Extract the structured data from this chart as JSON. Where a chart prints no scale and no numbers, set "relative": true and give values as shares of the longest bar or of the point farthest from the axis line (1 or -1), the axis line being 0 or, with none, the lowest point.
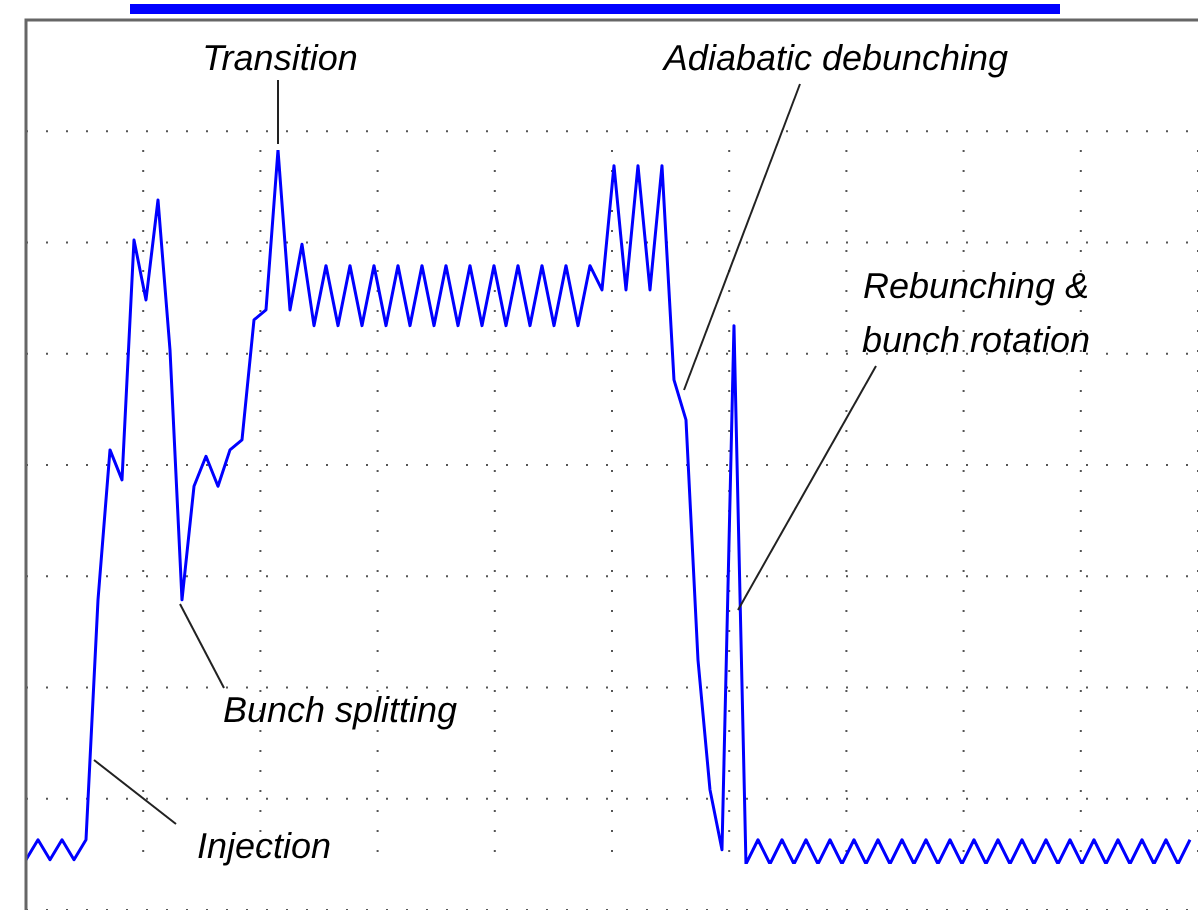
{
  "chart_data": {
    "type": "line",
    "relative": true,
    "grid": true,
    "marker": "none",
    "line_style": "solid",
    "categories": [
      null,
      null,
      null,
      null,
      null,
      null,
      null,
      null,
      null,
      null,
      null,
      null,
      null,
      null,
      null,
      null,
      null,
      null,
      null,
      null,
      null,
      null,
      null,
      null,
      null,
      null,
      null,
      null,
      null,
      null,
      null,
      null,
      null,
      null,
      null,
      null,
      null,
      null,
      null,
      null,
      null,
      null,
      null,
      null,
      null,
      null,
      null,
      null,
      null,
      null,
      null,
      null,
      null,
      null,
      null,
      null,
      null,
      null,
      null,
      null,
      null,
      null,
      null,
      null,
      null,
      null,
      null,
      null,
      null,
      null,
      null,
      null,
      null,
      null,
      null,
      null,
      null,
      null,
      null,
      null,
      null,
      null,
      null,
      null,
      null,
      null,
      null,
      null,
      null,
      null,
      null,
      null,
      null,
      null,
      null,
      null,
      null,
      null
    ],
    "series": [
      {
        "color": "#0000ff",
        "values": [
          0.006,
          0.034,
          0.006,
          0.034,
          0.006,
          0.034,
          0.37,
          0.58,
          0.538,
          0.874,
          0.79,
          0.93,
          0.72,
          0.37,
          0.529,
          0.571,
          0.529,
          0.58,
          0.594,
          0.762,
          0.776,
          1,
          0.776,
          0.868,
          0.754,
          0.838,
          0.754,
          0.838,
          0.754,
          0.838,
          0.754,
          0.838,
          0.754,
          0.838,
          0.754,
          0.838,
          0.754,
          0.838,
          0.754,
          0.838,
          0.754,
          0.838,
          0.754,
          0.838,
          0.754,
          0.838,
          0.754,
          0.838,
          0.804,
          0.978,
          0.804,
          0.978,
          0.804,
          0.978,
          0.678,
          0.622,
          0.286,
          0.104,
          0.02,
          0.754,
          0,
          0.034,
          0,
          0.034,
          0,
          0.034,
          0,
          0.034,
          0,
          0.034,
          0,
          0.034,
          0,
          0.034,
          0,
          0.034,
          0,
          0.034,
          0,
          0.034,
          0,
          0.034,
          0,
          0.034,
          0,
          0.034,
          0,
          0.034,
          0,
          0.034,
          0,
          0.034,
          0,
          0.034,
          0,
          0.034,
          0,
          0.034
        ]
      }
    ],
    "annotations": [
      "Transition",
      "Adiabatic debunching",
      "Rebunching & bunch rotation",
      "Bunch splitting",
      "Injection"
    ]
  }
}
